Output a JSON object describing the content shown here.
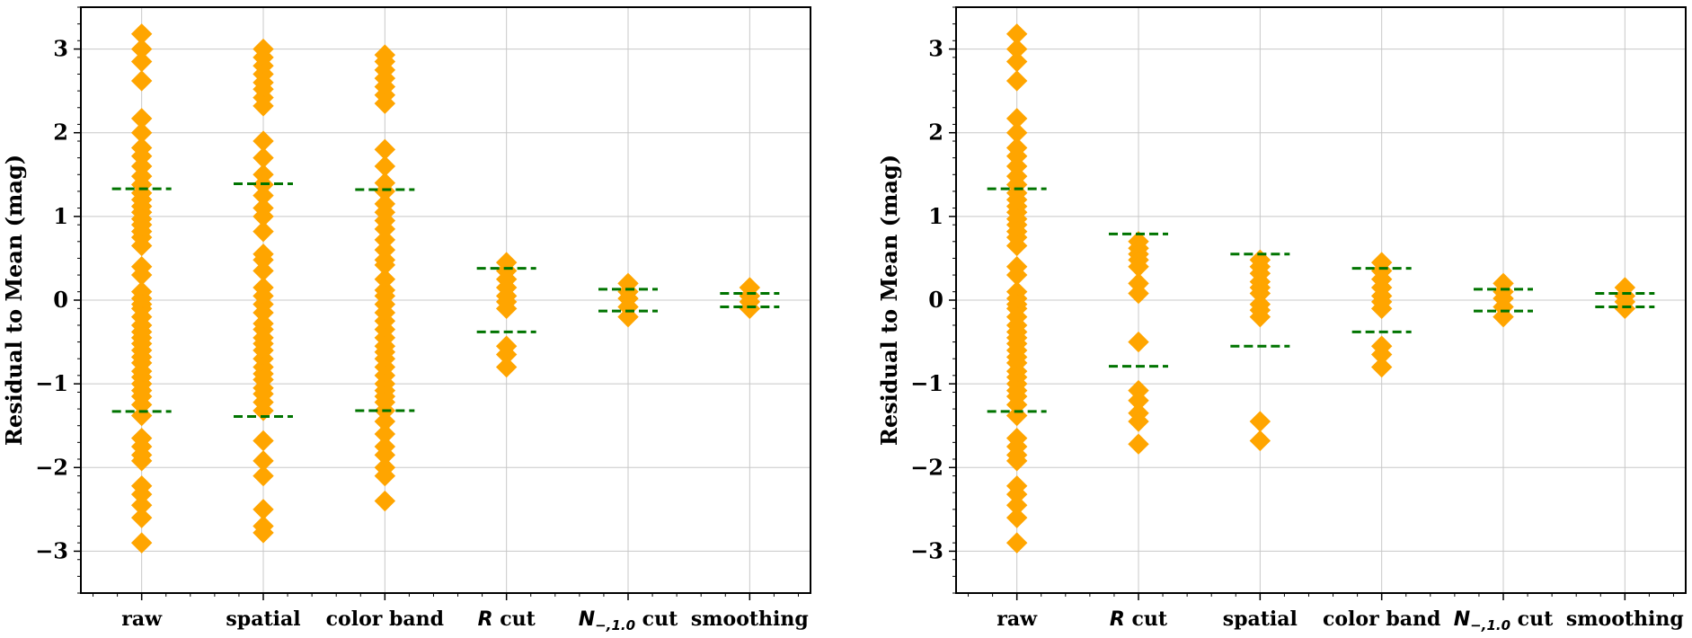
{
  "colors": {
    "marker": "#FFA500",
    "bound_line": "#007400",
    "grid": "#c8c8c8"
  },
  "chart_data": [
    {
      "type": "scatter",
      "marker": "diamond",
      "ylabel": "Residual to Mean (mag)",
      "ylim": [
        -3.5,
        3.5
      ],
      "yticks": [
        -3,
        -2,
        -1,
        0,
        1,
        2,
        3
      ],
      "ytick_labels": [
        "−3",
        "−2",
        "−1",
        "0",
        "1",
        "2",
        "3"
      ],
      "grid": true,
      "categories": [
        {
          "label": "raw",
          "bound": 1.33,
          "values": [
            3.18,
            3.0,
            2.85,
            2.62,
            2.17,
            2.0,
            1.82,
            1.72,
            1.6,
            1.48,
            1.38,
            1.28,
            1.2,
            1.12,
            1.05,
            0.97,
            0.9,
            0.82,
            0.75,
            0.65,
            0.4,
            0.3,
            0.1,
            0.02,
            -0.05,
            -0.1,
            -0.2,
            -0.3,
            -0.38,
            -0.45,
            -0.52,
            -0.6,
            -0.68,
            -0.75,
            -0.85,
            -0.92,
            -1.0,
            -1.08,
            -1.15,
            -1.25,
            -1.38,
            -1.65,
            -1.75,
            -1.85,
            -1.92,
            -2.22,
            -2.32,
            -2.45,
            -2.6,
            -2.9
          ]
        },
        {
          "label": "spatial",
          "bound": 1.39,
          "values": [
            3.0,
            2.9,
            2.8,
            2.7,
            2.6,
            2.52,
            2.42,
            2.32,
            1.9,
            1.7,
            1.5,
            1.38,
            1.25,
            1.1,
            1.0,
            0.82,
            0.55,
            0.48,
            0.35,
            0.15,
            0.05,
            -0.05,
            -0.15,
            -0.28,
            -0.35,
            -0.45,
            -0.52,
            -0.6,
            -0.7,
            -0.8,
            -0.88,
            -0.95,
            -1.05,
            -1.12,
            -1.22,
            -1.32,
            -1.68,
            -1.92,
            -2.1,
            -2.5,
            -2.7,
            -2.78
          ]
        },
        {
          "label": "color band",
          "bound": 1.32,
          "values": [
            2.93,
            2.85,
            2.75,
            2.65,
            2.55,
            2.45,
            2.35,
            1.8,
            1.6,
            1.4,
            1.3,
            1.15,
            1.05,
            0.95,
            0.85,
            0.72,
            0.6,
            0.48,
            0.42,
            0.25,
            0.12,
            0.05,
            -0.05,
            -0.15,
            -0.25,
            -0.35,
            -0.45,
            -0.55,
            -0.62,
            -0.7,
            -0.8,
            -0.9,
            -1.0,
            -1.08,
            -1.15,
            -1.22,
            -1.32,
            -1.45,
            -1.6,
            -1.75,
            -1.85,
            -2.0,
            -2.1,
            -2.4
          ]
        },
        {
          "label": "R cut",
          "italic_prefix": "R",
          "suffix": " cut",
          "bound": 0.38,
          "values": [
            0.45,
            0.35,
            0.25,
            0.15,
            0.05,
            -0.02,
            -0.1,
            -0.55,
            -0.65,
            -0.8
          ]
        },
        {
          "label": "N−,1.0 cut",
          "italic_prefix": "N",
          "subscript": "−,1.0",
          "suffix": " cut",
          "bound": 0.13,
          "values": [
            0.2,
            0.1,
            0.02,
            -0.08,
            -0.2
          ]
        },
        {
          "label": "smoothing",
          "bound": 0.08,
          "values": [
            0.15,
            0.05,
            -0.02,
            -0.1
          ]
        }
      ]
    },
    {
      "type": "scatter",
      "marker": "diamond",
      "ylabel": "Residual to Mean (mag)",
      "ylim": [
        -3.5,
        3.5
      ],
      "yticks": [
        -3,
        -2,
        -1,
        0,
        1,
        2,
        3
      ],
      "ytick_labels": [
        "−3",
        "−2",
        "−1",
        "0",
        "1",
        "2",
        "3"
      ],
      "grid": true,
      "categories": [
        {
          "label": "raw",
          "bound": 1.33,
          "values": [
            3.18,
            3.0,
            2.85,
            2.62,
            2.17,
            2.0,
            1.82,
            1.72,
            1.6,
            1.48,
            1.38,
            1.28,
            1.2,
            1.12,
            1.05,
            0.97,
            0.9,
            0.82,
            0.75,
            0.65,
            0.4,
            0.3,
            0.1,
            0.02,
            -0.05,
            -0.1,
            -0.2,
            -0.3,
            -0.38,
            -0.45,
            -0.52,
            -0.6,
            -0.68,
            -0.75,
            -0.85,
            -0.92,
            -1.0,
            -1.08,
            -1.15,
            -1.25,
            -1.38,
            -1.65,
            -1.75,
            -1.85,
            -1.92,
            -2.22,
            -2.32,
            -2.45,
            -2.6,
            -2.9
          ]
        },
        {
          "label": "R cut",
          "italic_prefix": "R",
          "suffix": " cut",
          "bound": 0.79,
          "values": [
            0.7,
            0.62,
            0.55,
            0.48,
            0.4,
            0.2,
            0.08,
            -0.5,
            -1.08,
            -1.2,
            -1.35,
            -1.45,
            -1.72
          ]
        },
        {
          "label": "spatial",
          "bound": 0.55,
          "values": [
            0.48,
            0.4,
            0.32,
            0.22,
            0.15,
            0.08,
            -0.05,
            -0.12,
            -0.2,
            -1.45,
            -1.68
          ]
        },
        {
          "label": "color band",
          "bound": 0.38,
          "values": [
            0.45,
            0.35,
            0.25,
            0.15,
            0.05,
            -0.02,
            -0.1,
            -0.55,
            -0.65,
            -0.8
          ]
        },
        {
          "label": "N−,1.0 cut",
          "italic_prefix": "N",
          "subscript": "−,1.0",
          "suffix": " cut",
          "bound": 0.13,
          "values": [
            0.2,
            0.1,
            0.02,
            -0.08,
            -0.2
          ]
        },
        {
          "label": "smoothing",
          "bound": 0.08,
          "values": [
            0.15,
            0.05,
            -0.02,
            -0.1
          ]
        }
      ]
    }
  ]
}
